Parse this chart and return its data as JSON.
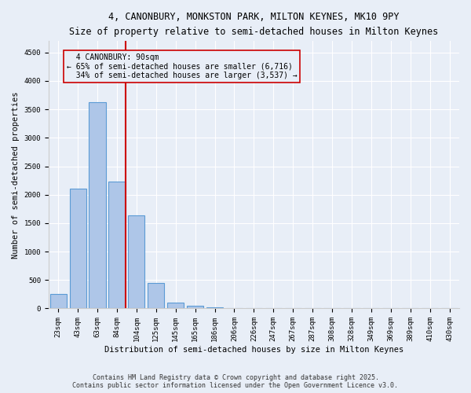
{
  "title1": "4, CANONBURY, MONKSTON PARK, MILTON KEYNES, MK10 9PY",
  "title2": "Size of property relative to semi-detached houses in Milton Keynes",
  "xlabel": "Distribution of semi-detached houses by size in Milton Keynes",
  "ylabel": "Number of semi-detached properties",
  "bin_labels": [
    "23sqm",
    "43sqm",
    "63sqm",
    "84sqm",
    "104sqm",
    "125sqm",
    "145sqm",
    "165sqm",
    "186sqm",
    "206sqm",
    "226sqm",
    "247sqm",
    "267sqm",
    "287sqm",
    "308sqm",
    "328sqm",
    "349sqm",
    "369sqm",
    "389sqm",
    "410sqm",
    "430sqm"
  ],
  "bar_values": [
    250,
    2100,
    3620,
    2230,
    1640,
    450,
    110,
    50,
    20,
    0,
    0,
    0,
    0,
    0,
    0,
    0,
    0,
    0,
    0,
    0,
    0
  ],
  "bar_color": "#aec6e8",
  "bar_edgecolor": "#5b9bd5",
  "vline_bin_index": 3,
  "pct_smaller": 65,
  "count_smaller": "6,716",
  "pct_larger": 34,
  "count_larger": "3,537",
  "annotation_label": "4 CANONBURY: 90sqm",
  "vline_color": "#cc0000",
  "box_edgecolor": "#cc0000",
  "background_color": "#e8eef7",
  "ylim": [
    0,
    4700
  ],
  "yticks": [
    0,
    500,
    1000,
    1500,
    2000,
    2500,
    3000,
    3500,
    4000,
    4500
  ],
  "footer1": "Contains HM Land Registry data © Crown copyright and database right 2025.",
  "footer2": "Contains public sector information licensed under the Open Government Licence v3.0.",
  "title_fontsize": 8.5,
  "axis_label_fontsize": 7.5,
  "tick_fontsize": 6.5,
  "annotation_fontsize": 7.0
}
